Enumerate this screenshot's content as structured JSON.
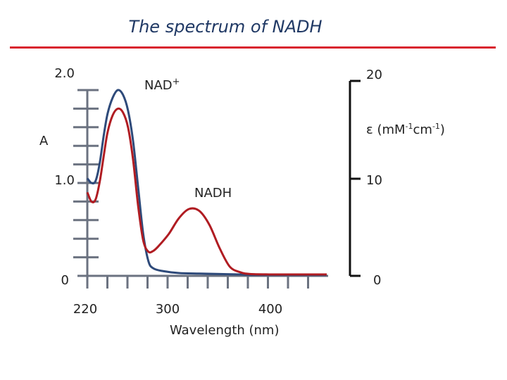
{
  "chart_data": {
    "type": "line",
    "title": "The spectrum of NADH",
    "xlabel": "Wavelength (nm)",
    "ylabel_left": "A",
    "ylabel_right": "ε (mM-1cm-1)",
    "x_ticks": [
      {
        "value": 220,
        "label": "220"
      },
      {
        "value": 300,
        "label": "300"
      },
      {
        "value": 400,
        "label": "400"
      }
    ],
    "y_left_ticks": [
      {
        "value": 0,
        "label": "0"
      },
      {
        "value": 1.0,
        "label": "1.0"
      },
      {
        "value": 2.0,
        "label": "2.0"
      }
    ],
    "y_right_ticks": [
      {
        "value": 0,
        "label": "0"
      },
      {
        "value": 10,
        "label": "10"
      },
      {
        "value": 20,
        "label": "20"
      }
    ],
    "xlim": [
      220,
      400
    ],
    "ylim": [
      0,
      2.0
    ],
    "grid": false,
    "series": [
      {
        "name": "NAD+",
        "color": "#2e4a7a",
        "points": [
          [
            220,
            1.05
          ],
          [
            224,
            1.0
          ],
          [
            228,
            1.02
          ],
          [
            232,
            1.2
          ],
          [
            236,
            1.5
          ],
          [
            240,
            1.75
          ],
          [
            245,
            1.92
          ],
          [
            250,
            2.0
          ],
          [
            255,
            1.95
          ],
          [
            260,
            1.78
          ],
          [
            265,
            1.45
          ],
          [
            270,
            0.95
          ],
          [
            275,
            0.45
          ],
          [
            280,
            0.16
          ],
          [
            285,
            0.08
          ],
          [
            295,
            0.05
          ],
          [
            310,
            0.03
          ],
          [
            330,
            0.025
          ],
          [
            350,
            0.02
          ],
          [
            370,
            0.015
          ],
          [
            380,
            0.01
          ],
          [
            400,
            0.01
          ]
        ]
      },
      {
        "name": "NADH",
        "color": "#b01c22",
        "points": [
          [
            220,
            0.9
          ],
          [
            224,
            0.8
          ],
          [
            228,
            0.82
          ],
          [
            232,
            1.0
          ],
          [
            236,
            1.28
          ],
          [
            240,
            1.55
          ],
          [
            245,
            1.73
          ],
          [
            250,
            1.8
          ],
          [
            255,
            1.76
          ],
          [
            260,
            1.6
          ],
          [
            265,
            1.25
          ],
          [
            270,
            0.75
          ],
          [
            275,
            0.38
          ],
          [
            280,
            0.26
          ],
          [
            285,
            0.27
          ],
          [
            290,
            0.32
          ],
          [
            300,
            0.45
          ],
          [
            310,
            0.62
          ],
          [
            320,
            0.72
          ],
          [
            330,
            0.7
          ],
          [
            340,
            0.55
          ],
          [
            350,
            0.3
          ],
          [
            360,
            0.1
          ],
          [
            370,
            0.04
          ],
          [
            380,
            0.02
          ],
          [
            400,
            0.015
          ]
        ]
      }
    ],
    "annotations": [
      {
        "text": "NAD",
        "superscript": "+",
        "x": 295,
        "y": 1.85
      },
      {
        "text": "NADH",
        "x": 322,
        "y": 0.85
      }
    ]
  }
}
